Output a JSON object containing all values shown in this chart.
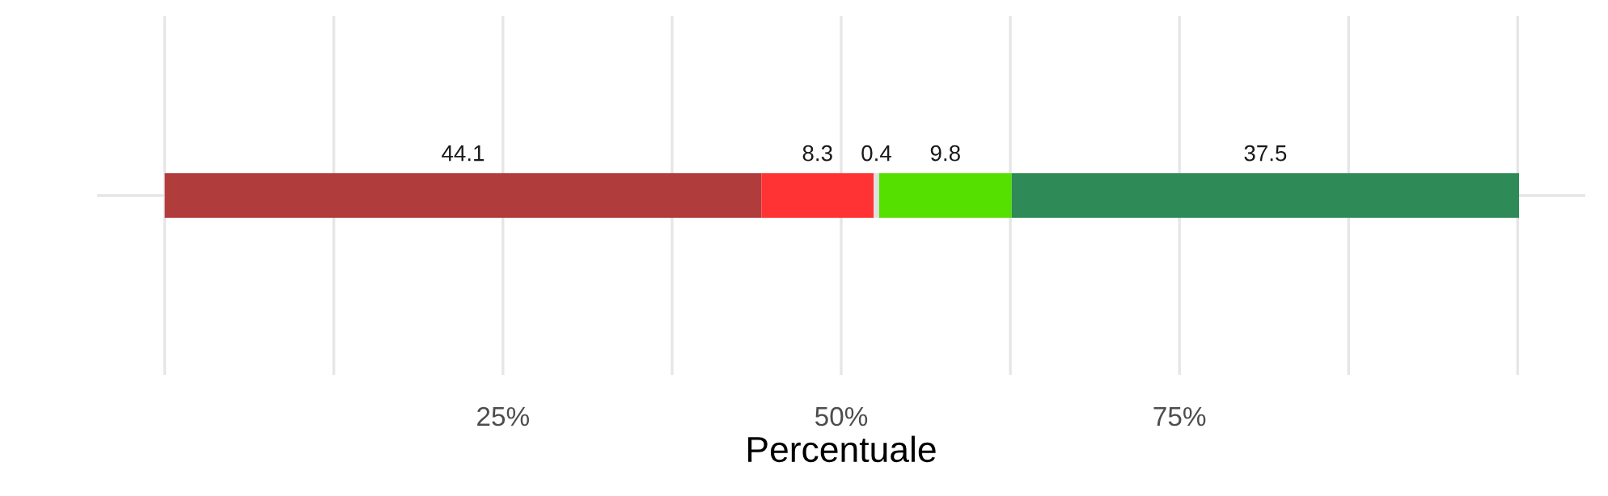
{
  "chart_data": {
    "type": "bar",
    "orientation": "horizontal",
    "stacked": true,
    "categories": [
      null
    ],
    "series": [
      {
        "color": "#b03c3c",
        "values": [
          44.1
        ]
      },
      {
        "color": "#ff3333",
        "values": [
          8.3
        ]
      },
      {
        "color": "#e0e0e0",
        "values": [
          0.4
        ]
      },
      {
        "color": "#55e000",
        "values": [
          9.8
        ]
      },
      {
        "color": "#2e8b57",
        "values": [
          37.5
        ]
      }
    ],
    "xlabel": "Percentuale",
    "xlim": [
      -5,
      105
    ],
    "xticks": [
      {
        "value": 0,
        "label": null
      },
      {
        "value": 12.5,
        "label": null
      },
      {
        "value": 25,
        "label": "25%"
      },
      {
        "value": 37.5,
        "label": null
      },
      {
        "value": 50,
        "label": "50%"
      },
      {
        "value": 62.5,
        "label": null
      },
      {
        "value": 75,
        "label": "75%"
      },
      {
        "value": 87.5,
        "label": null
      },
      {
        "value": 100,
        "label": null
      }
    ],
    "tick_labels": "x",
    "grid": true,
    "data_labels": true,
    "legend": false
  }
}
